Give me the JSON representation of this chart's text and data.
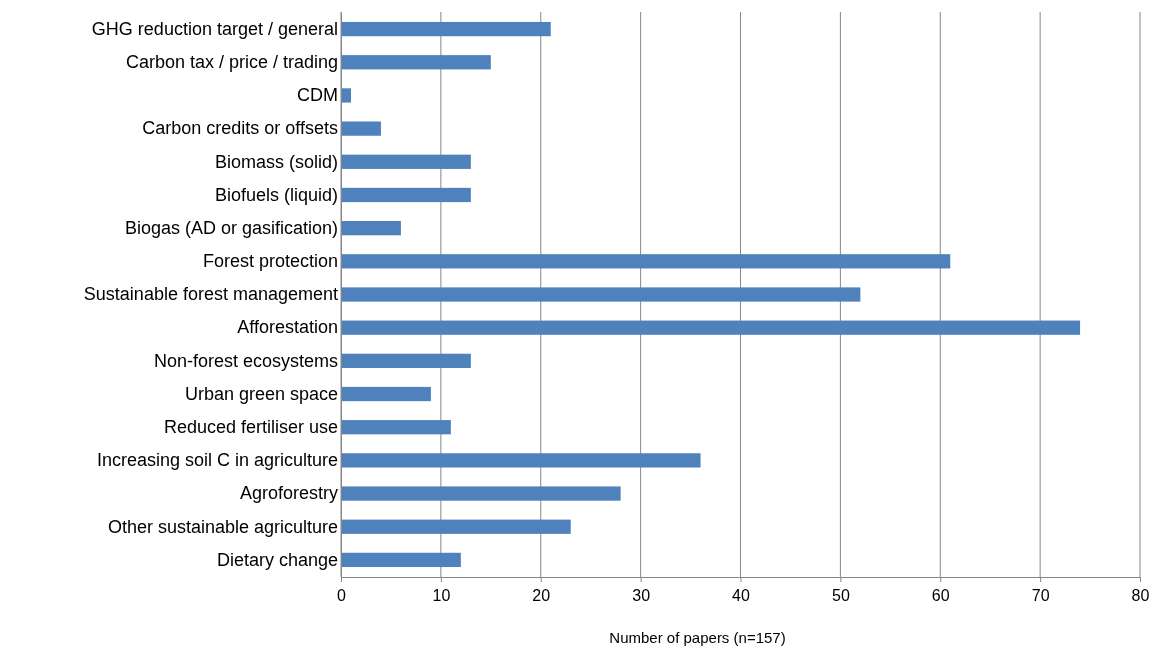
{
  "chart_data": {
    "type": "bar",
    "orientation": "horizontal",
    "xlabel": "Number of papers (n=157)",
    "categories": [
      "GHG reduction target / general",
      "Carbon tax / price / trading",
      "CDM",
      "Carbon credits or offsets",
      "Biomass (solid)",
      "Biofuels (liquid)",
      "Biogas (AD or gasification)",
      "Forest protection",
      "Sustainable forest management",
      "Afforestation",
      "Non-forest ecosystems",
      "Urban green space",
      "Reduced fertiliser use",
      "Increasing soil C in agriculture",
      "Agroforestry",
      "Other sustainable agriculture",
      "Dietary change"
    ],
    "values": [
      21,
      15,
      1,
      4,
      13,
      13,
      6,
      61,
      52,
      74,
      13,
      9,
      11,
      36,
      28,
      23,
      12
    ],
    "color": "#4f81bd",
    "xlim": [
      0,
      80
    ],
    "xticks": [
      0,
      10,
      20,
      30,
      40,
      50,
      60,
      70,
      80
    ],
    "grid": "x"
  }
}
